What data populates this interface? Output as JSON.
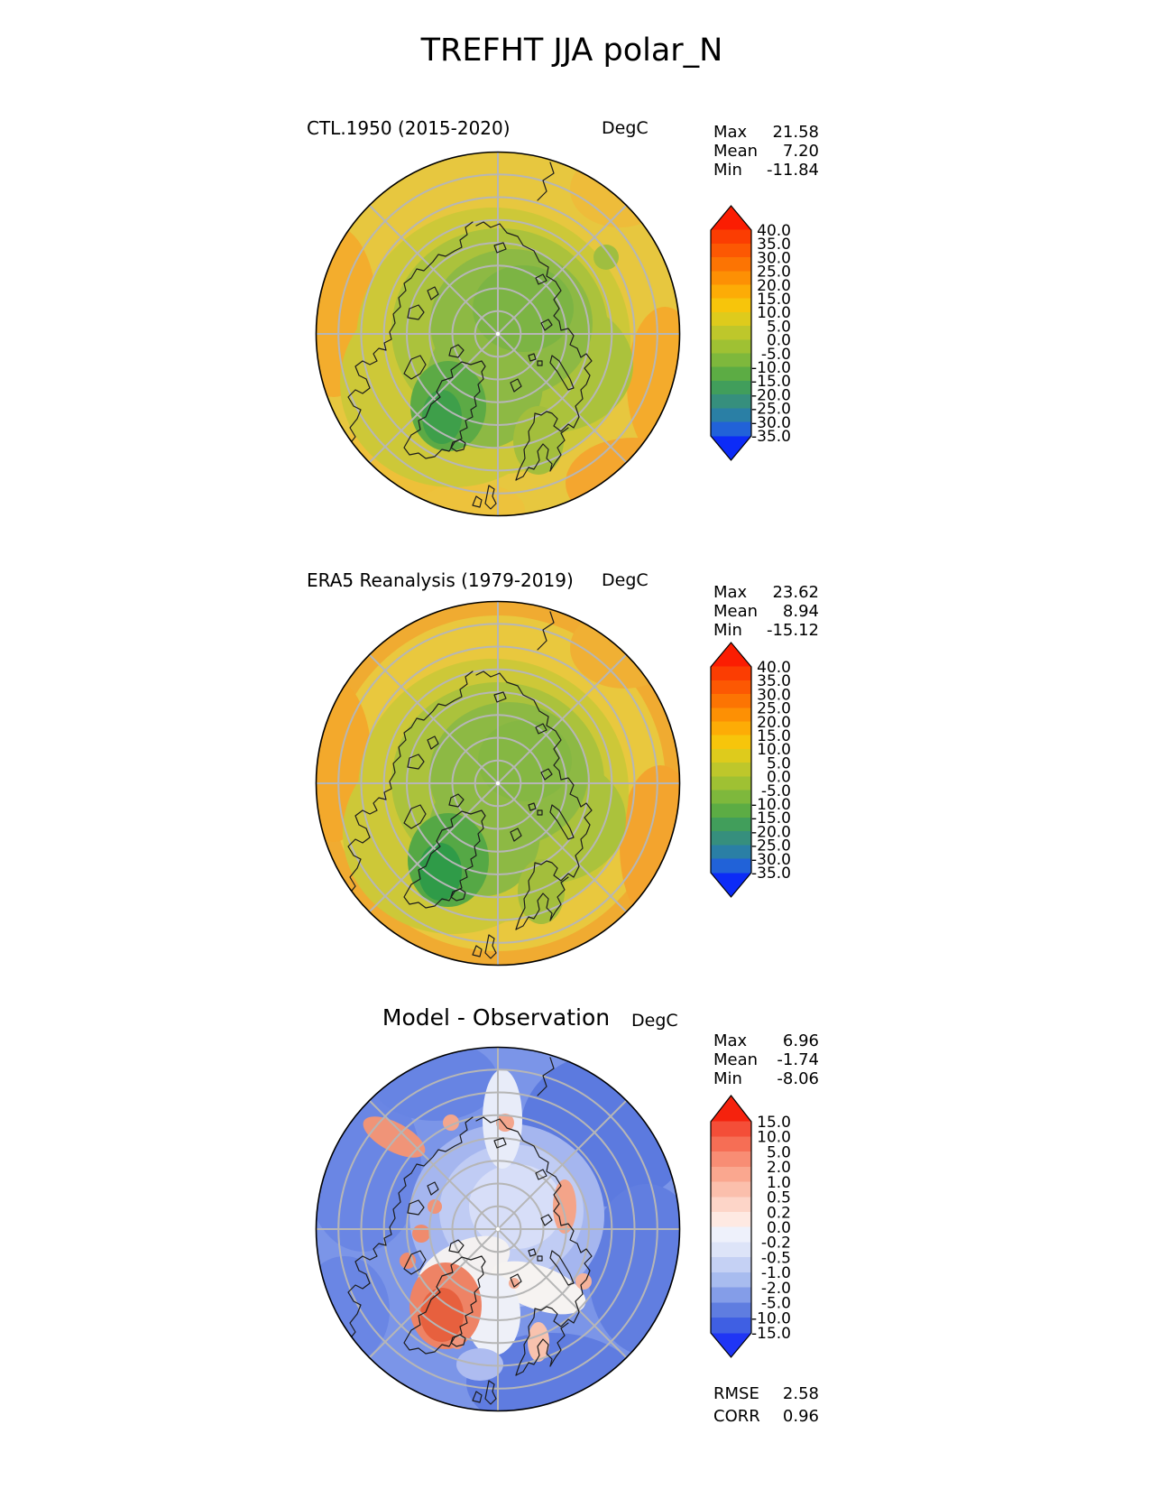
{
  "title": "TREFHT JJA polar_N",
  "panels": [
    {
      "label": "CTL.1950 (2015-2020)",
      "units": "DegC",
      "stats": [
        {
          "label": "Max",
          "value": "21.58"
        },
        {
          "label": "Mean",
          "value": "7.20"
        },
        {
          "label": "Min",
          "value": "-11.84"
        }
      ],
      "colorbar": {
        "levels": [
          "40.0",
          "35.0",
          "30.0",
          "25.0",
          "20.0",
          "15.0",
          "10.0",
          "5.0",
          "0.0",
          "-5.0",
          "-10.0",
          "-15.0",
          "-20.0",
          "-25.0",
          "-30.0",
          "-35.0"
        ],
        "colors": [
          "#fb3d02",
          "#fc5803",
          "#fc7403",
          "#fd9004",
          "#fdac06",
          "#f7c50b",
          "#decb1c",
          "#bec72b",
          "#9fc133",
          "#7eb83c",
          "#5cac44",
          "#419e5b",
          "#368f7d",
          "#2a7fa5",
          "#2162d8"
        ],
        "arrow_top": "#fb1d02",
        "arrow_bottom": "#0c2bf7"
      }
    },
    {
      "label": "ERA5 Reanalysis (1979-2019)",
      "units": "DegC",
      "stats": [
        {
          "label": "Max",
          "value": "23.62"
        },
        {
          "label": "Mean",
          "value": "8.94"
        },
        {
          "label": "Min",
          "value": "-15.12"
        }
      ],
      "colorbar": {
        "levels": [
          "40.0",
          "35.0",
          "30.0",
          "25.0",
          "20.0",
          "15.0",
          "10.0",
          "5.0",
          "0.0",
          "-5.0",
          "-10.0",
          "-15.0",
          "-20.0",
          "-25.0",
          "-30.0",
          "-35.0"
        ],
        "colors": [
          "#fb3d02",
          "#fc5803",
          "#fc7403",
          "#fd9004",
          "#fdac06",
          "#f7c50b",
          "#decb1c",
          "#bec72b",
          "#9fc133",
          "#7eb83c",
          "#5cac44",
          "#419e5b",
          "#368f7d",
          "#2a7fa5",
          "#2162d8"
        ],
        "arrow_top": "#fb1d02",
        "arrow_bottom": "#0c2bf7"
      }
    },
    {
      "label": "Model - Observation",
      "units": "DegC",
      "stats": [
        {
          "label": "Max",
          "value": "6.96"
        },
        {
          "label": "Mean",
          "value": "-1.74"
        },
        {
          "label": "Min",
          "value": "-8.06"
        }
      ],
      "metrics": [
        {
          "label": "RMSE",
          "value": "2.58"
        },
        {
          "label": "CORR",
          "value": "0.96"
        }
      ],
      "colorbar": {
        "levels": [
          "15.0",
          "10.0",
          "5.0",
          "2.0",
          "1.0",
          "0.5",
          "0.2",
          "0.0",
          "-0.2",
          "-0.5",
          "-1.0",
          "-2.0",
          "-5.0",
          "-10.0",
          "-15.0"
        ],
        "colors": [
          "#f44e38",
          "#f66e55",
          "#f88d74",
          "#faa78f",
          "#fbbfac",
          "#fdd5c8",
          "#fee9e2",
          "#eef1fb",
          "#dde4f8",
          "#c5d1f4",
          "#a8bcef",
          "#849de8",
          "#5f7de0",
          "#3f5fe3"
        ],
        "arrow_top": "#f5220d",
        "arrow_bottom": "#1f35f5"
      }
    }
  ],
  "chart_data": [
    {
      "type": "heatmap",
      "subtype": "filled-contour-map",
      "projection": "north-polar-stereographic",
      "boundary_latitude": 50,
      "title": "CTL.1950 (2015-2020)",
      "suptitle": "TREFHT JJA polar_N",
      "units": "DegC",
      "stats": {
        "max": 21.58,
        "mean": 7.2,
        "min": -11.84
      },
      "contour_levels": [
        40,
        35,
        30,
        25,
        20,
        15,
        10,
        5,
        0,
        -5,
        -10,
        -15,
        -20,
        -25,
        -30,
        -35
      ],
      "colorbar_extend": "both",
      "legend_position": "right"
    },
    {
      "type": "heatmap",
      "subtype": "filled-contour-map",
      "projection": "north-polar-stereographic",
      "boundary_latitude": 50,
      "title": "ERA5 Reanalysis (1979-2019)",
      "units": "DegC",
      "stats": {
        "max": 23.62,
        "mean": 8.94,
        "min": -15.12
      },
      "contour_levels": [
        40,
        35,
        30,
        25,
        20,
        15,
        10,
        5,
        0,
        -5,
        -10,
        -15,
        -20,
        -25,
        -30,
        -35
      ],
      "colorbar_extend": "both",
      "legend_position": "right"
    },
    {
      "type": "heatmap",
      "subtype": "filled-contour-difference-map",
      "projection": "north-polar-stereographic",
      "boundary_latitude": 50,
      "title": "Model - Observation",
      "units": "DegC",
      "stats": {
        "max": 6.96,
        "mean": -1.74,
        "min": -8.06,
        "rmse": 2.58,
        "corr": 0.96
      },
      "contour_levels": [
        15,
        10,
        5,
        2,
        1,
        0.5,
        0.2,
        0,
        -0.2,
        -0.5,
        -1,
        -2,
        -5,
        -10,
        -15
      ],
      "colorbar_extend": "both",
      "legend_position": "right"
    }
  ]
}
